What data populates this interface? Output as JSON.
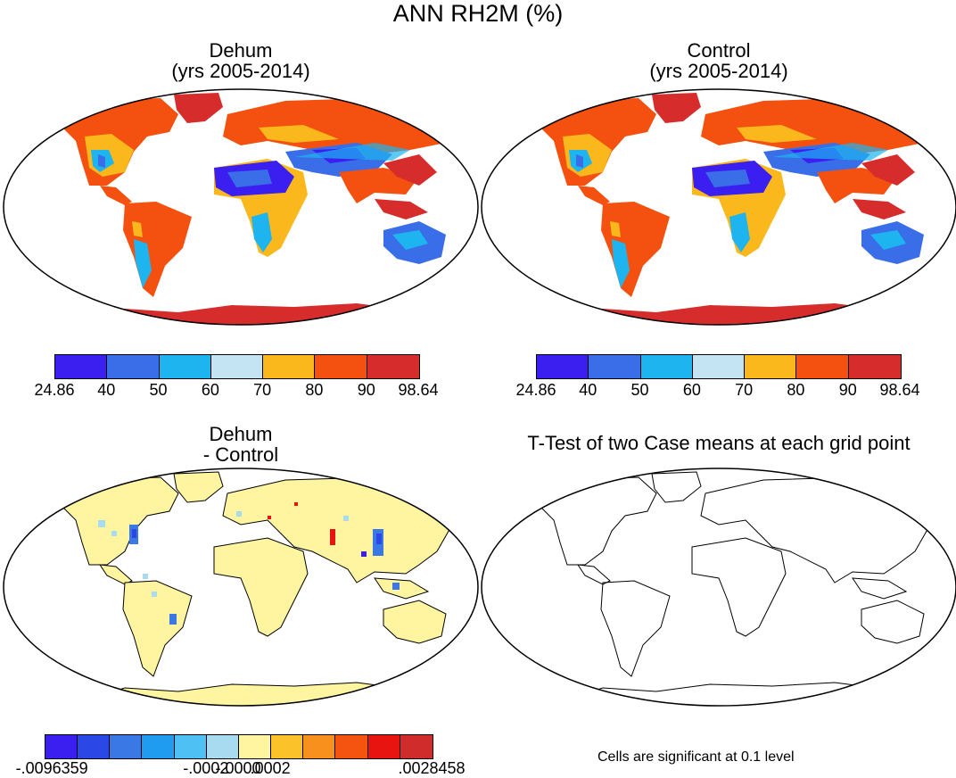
{
  "figure": {
    "title": "ANN RH2M (%)"
  },
  "panels": {
    "dehum": {
      "title_line1": "Dehum",
      "title_line2": "(yrs 2005-2014)"
    },
    "control": {
      "title_line1": "Control",
      "title_line2": "(yrs 2005-2014)"
    },
    "diff": {
      "title_line1": "Dehum",
      "title_line2": "- Control"
    },
    "ttest": {
      "title": "T-Test of two Case means at each grid point",
      "note": "Cells are significant at 0.1 level"
    }
  },
  "colorbar_main": {
    "colors": [
      "#3a1ff0",
      "#3a6ee8",
      "#1eb4f0",
      "#c4e4f4",
      "#fbb81c",
      "#f4500f",
      "#d62c2c"
    ],
    "tick_labels": [
      "24.86",
      "40",
      "50",
      "60",
      "70",
      "80",
      "90",
      "98.64"
    ]
  },
  "colorbar_diff": {
    "colors": [
      "#3a1ff0",
      "#2b48e6",
      "#3a78e6",
      "#1f9cf0",
      "#4ec0f4",
      "#a8daf0",
      "#fff5a0",
      "#fbc22a",
      "#f7901c",
      "#f4540f",
      "#e8140f",
      "#d02c2c"
    ],
    "tick_labels": [
      "-.0096359",
      "-.0002",
      "-.0000",
      ".0002",
      ".0028458"
    ]
  },
  "chart_data": {
    "type": "heatmap",
    "title": "ANN RH2M (%)",
    "maps": [
      {
        "name": "Dehum (yrs 2005-2014)",
        "variable": "RH2M",
        "range": [
          24.86,
          98.64
        ]
      },
      {
        "name": "Control (yrs 2005-2014)",
        "variable": "RH2M",
        "range": [
          24.86,
          98.64
        ]
      },
      {
        "name": "Dehum - Control",
        "variable": "RH2M difference",
        "range": [
          -0.0096359,
          0.0028458
        ]
      },
      {
        "name": "T-Test of two Case means at each grid point",
        "significance_level": 0.1
      }
    ],
    "levels_main": [
      24.86,
      40,
      50,
      60,
      70,
      80,
      90,
      98.64
    ],
    "levels_diff_labeled": [
      -0.0096359,
      -0.0002,
      -0.0,
      0.0002,
      0.0028458
    ]
  }
}
